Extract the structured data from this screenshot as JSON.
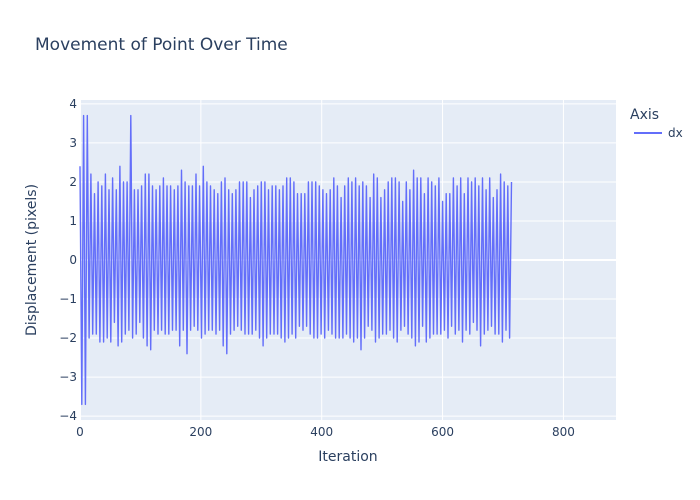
{
  "chart_data": {
    "type": "line",
    "title": "Movement of Point Over Time",
    "xlabel": "Iteration",
    "ylabel": "Displacement (pixels)",
    "xlim": [
      0,
      887
    ],
    "ylim": [
      -4.1,
      4.1
    ],
    "x_ticks": [
      0,
      200,
      400,
      600,
      800
    ],
    "y_ticks": [
      -4,
      -3,
      -2,
      -1,
      0,
      1,
      2,
      3,
      4
    ],
    "y_tick_labels": [
      "−4",
      "−3",
      "−2",
      "−1",
      "0",
      "1",
      "2",
      "3",
      "4"
    ],
    "grid": true,
    "legend": {
      "title": "Axis",
      "placement": "top-right"
    },
    "series": [
      {
        "name": "dx",
        "color": "#636efa",
        "x_start": 0,
        "x_step": 3,
        "values": [
          2.4,
          -3.7,
          3.7,
          -3.7,
          3.7,
          -2.0,
          2.2,
          -1.9,
          1.7,
          -1.9,
          2.0,
          -2.1,
          1.9,
          -2.1,
          2.2,
          -2.0,
          1.8,
          -2.1,
          2.1,
          -1.6,
          1.8,
          -2.2,
          2.4,
          -2.1,
          2.0,
          -1.9,
          2.0,
          -1.8,
          3.7,
          -2.0,
          1.8,
          -1.9,
          1.8,
          -1.6,
          1.9,
          -2.0,
          2.2,
          -2.2,
          2.2,
          -2.3,
          1.9,
          -1.8,
          1.8,
          -1.9,
          1.9,
          -1.8,
          2.1,
          -1.9,
          1.9,
          -1.9,
          1.9,
          -1.8,
          1.8,
          -1.8,
          1.9,
          -2.2,
          2.3,
          -1.8,
          2.0,
          -2.4,
          1.9,
          -1.8,
          1.9,
          -1.7,
          2.2,
          -1.8,
          1.9,
          -2.0,
          2.4,
          -1.9,
          2.0,
          -1.8,
          1.9,
          -1.8,
          1.8,
          -1.9,
          1.7,
          -1.8,
          2.0,
          -2.2,
          2.1,
          -2.4,
          1.8,
          -1.9,
          1.7,
          -1.8,
          1.8,
          -1.7,
          2.0,
          -1.8,
          2.0,
          -1.9,
          2.0,
          -1.9,
          1.6,
          -1.9,
          1.8,
          -1.8,
          1.9,
          -2.0,
          2.0,
          -2.2,
          2.0,
          -2.0,
          1.8,
          -1.9,
          1.9,
          -1.9,
          1.9,
          -1.9,
          1.8,
          -2.0,
          1.9,
          -2.1,
          2.1,
          -2.0,
          2.1,
          -1.9,
          2.0,
          -2.0,
          1.7,
          -1.7,
          1.7,
          -1.8,
          1.7,
          -1.7,
          2.0,
          -1.9,
          2.0,
          -2.0,
          2.0,
          -2.0,
          1.9,
          -1.9,
          1.8,
          -2.0,
          1.7,
          -1.8,
          1.8,
          -1.9,
          2.1,
          -2.0,
          1.9,
          -2.0,
          1.6,
          -2.0,
          1.9,
          -1.9,
          2.1,
          -2.0,
          2.0,
          -2.1,
          2.1,
          -2.0,
          1.9,
          -2.3,
          2.0,
          -2.0,
          1.9,
          -1.7,
          1.6,
          -1.8,
          2.2,
          -2.1,
          2.1,
          -2.0,
          1.6,
          -1.9,
          1.8,
          -1.9,
          2.0,
          -1.8,
          2.1,
          -2.0,
          2.1,
          -2.1,
          2.0,
          -1.8,
          1.5,
          -1.7,
          2.0,
          -1.9,
          1.8,
          -2.0,
          2.3,
          -2.2,
          2.1,
          -2.1,
          2.1,
          -1.7,
          1.7,
          -2.1,
          2.1,
          -2.0,
          2.0,
          -1.9,
          1.9,
          -1.9,
          2.1,
          -1.9,
          1.5,
          -1.8,
          1.7,
          -2.0,
          1.7,
          -1.7,
          2.1,
          -1.9,
          1.9,
          -1.8,
          2.1,
          -2.1,
          1.7,
          -1.8,
          2.1,
          -1.9,
          2.0,
          -1.6,
          2.1,
          -1.8,
          1.9,
          -2.2,
          2.1,
          -1.9,
          1.8,
          -1.8,
          2.1,
          -1.7,
          1.6,
          -1.9,
          1.8,
          -1.9,
          2.2,
          -2.1,
          2.0,
          -1.8,
          1.9,
          -2.0,
          2.0
        ]
      }
    ]
  }
}
